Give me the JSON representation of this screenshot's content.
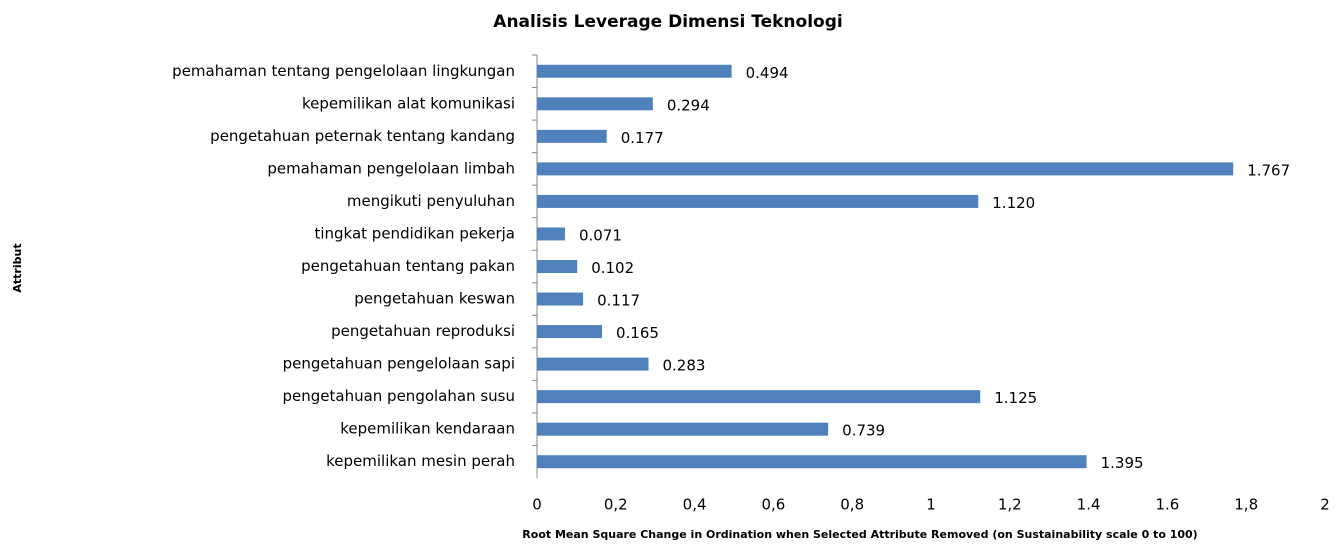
{
  "chart_data": {
    "type": "barh",
    "title": "Analisis Leverage Dimensi Teknologi",
    "xlabel": "Root Mean Square Change in Ordination when Selected Attribute Removed (on Sustainability scale 0 to 100)",
    "ylabel": "Attribut",
    "categories": [
      "pemahaman tentang pengelolaan lingkungan",
      "kepemilikan alat komunikasi",
      "pengetahuan peternak tentang kandang",
      "pemahaman pengelolaan limbah",
      "mengikuti penyuluhan",
      "tingkat pendidikan pekerja",
      "pengetahuan tentang pakan",
      "pengetahuan keswan",
      "pengetahuan reproduksi",
      "pengetahuan pengelolaan sapi",
      "pengetahuan pengolahan susu",
      "kepemilikan kendaraan",
      "kepemilikan mesin perah"
    ],
    "values": [
      0.494,
      0.294,
      0.177,
      1.767,
      1.12,
      0.071,
      0.102,
      0.117,
      0.165,
      0.283,
      1.125,
      0.739,
      1.395
    ],
    "value_labels": [
      "0.494",
      "0.294",
      "0.177",
      "1.767",
      "1.120",
      "0.071",
      "0.102",
      "0.117",
      "0.165",
      "0.283",
      "1.125",
      "0.739",
      "1.395"
    ],
    "color": "#4f81bd",
    "xlim": [
      0,
      2
    ],
    "xticks": [
      0,
      {
        "value": 0.2,
        "label": "0,2"
      },
      {
        "value": 0.4,
        "label": "0,4"
      },
      {
        "value": 0.6,
        "label": "0,6"
      },
      {
        "value": 0.8,
        "label": "0,8"
      },
      1,
      {
        "value": 1.2,
        "label": "1,2"
      },
      {
        "value": 1.4,
        "label": "1.4"
      },
      {
        "value": 1.6,
        "label": "1.6"
      },
      {
        "value": 1.8,
        "label": "1,8"
      },
      2
    ],
    "grid": false
  }
}
